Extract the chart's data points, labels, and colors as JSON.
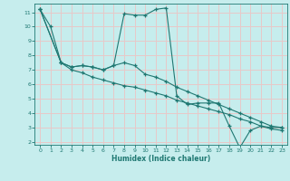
{
  "xlabel": "Humidex (Indice chaleur)",
  "bg_color": "#c6eded",
  "line_color": "#1f7872",
  "grid_color": "#e8c8c8",
  "xlim": [
    -0.5,
    23.5
  ],
  "ylim": [
    1.8,
    11.6
  ],
  "xticks": [
    0,
    1,
    2,
    3,
    4,
    5,
    6,
    7,
    8,
    9,
    10,
    11,
    12,
    13,
    14,
    15,
    16,
    17,
    18,
    19,
    20,
    21,
    22,
    23
  ],
  "yticks": [
    2,
    3,
    4,
    5,
    6,
    7,
    8,
    9,
    10,
    11
  ],
  "line1_x": [
    0,
    1,
    2,
    3,
    4,
    5,
    6,
    7,
    8,
    9,
    10,
    11,
    12,
    13,
    14,
    15,
    16,
    17,
    18,
    19,
    20,
    21,
    22,
    23
  ],
  "line1_y": [
    11.2,
    10.0,
    7.5,
    7.2,
    7.3,
    7.2,
    7.0,
    7.3,
    10.9,
    10.8,
    10.8,
    11.2,
    11.3,
    5.2,
    4.6,
    4.7,
    4.7,
    4.7,
    3.1,
    1.6,
    2.8,
    3.1,
    3.0,
    3.0
  ],
  "line2_x": [
    0,
    2,
    3,
    4,
    5,
    6,
    7,
    8,
    9,
    10,
    11,
    12,
    13,
    14,
    15,
    16,
    17,
    18,
    19,
    20,
    21,
    22,
    23
  ],
  "line2_y": [
    11.2,
    7.5,
    7.2,
    7.3,
    7.2,
    7.0,
    7.3,
    7.5,
    7.3,
    6.7,
    6.5,
    6.2,
    5.8,
    5.5,
    5.2,
    4.9,
    4.6,
    4.3,
    4.0,
    3.7,
    3.4,
    3.1,
    3.0
  ],
  "line3_x": [
    0,
    2,
    3,
    4,
    5,
    6,
    7,
    8,
    9,
    10,
    11,
    12,
    13,
    14,
    15,
    16,
    17,
    18,
    19,
    20,
    21,
    22,
    23
  ],
  "line3_y": [
    11.2,
    7.5,
    7.0,
    6.8,
    6.5,
    6.3,
    6.1,
    5.9,
    5.8,
    5.6,
    5.4,
    5.2,
    4.9,
    4.7,
    4.5,
    4.3,
    4.1,
    3.9,
    3.6,
    3.4,
    3.1,
    2.9,
    2.8
  ]
}
